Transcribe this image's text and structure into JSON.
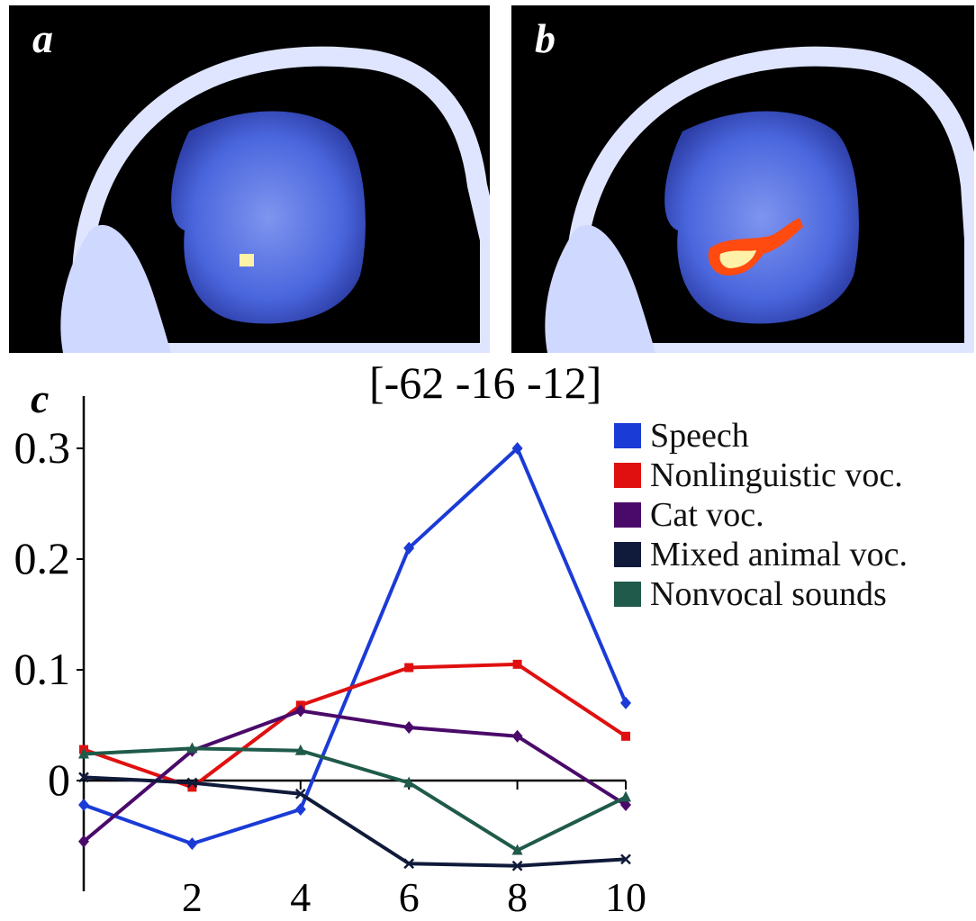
{
  "panels": {
    "a": {
      "label": "a"
    },
    "b": {
      "label": "b"
    },
    "c": {
      "label": "c"
    }
  },
  "colors": {
    "scan_blue": "#3b5bdc",
    "skull": "#e8ecff",
    "activation_core": "#fff2a8",
    "activation_edge": "#ff4a10"
  },
  "chart_data": {
    "type": "line",
    "title": "[-62 -16 -12]",
    "xlabel": "",
    "ylabel": "",
    "x": [
      0,
      2,
      4,
      6,
      8,
      10
    ],
    "x_ticks": [
      "2",
      "4",
      "6",
      "8",
      "10"
    ],
    "x_tick_values": [
      2,
      4,
      6,
      8,
      10
    ],
    "y_ticks": [
      "0",
      "0.1",
      "0.2",
      "0.3"
    ],
    "y_tick_values": [
      0,
      0.1,
      0.2,
      0.3
    ],
    "xlim": [
      0,
      10
    ],
    "ylim": [
      -0.1,
      0.34
    ],
    "grid": false,
    "legend_position": "top-right",
    "series": [
      {
        "name": "Speech",
        "color": "#1a3bd6",
        "values": [
          -0.022,
          -0.057,
          -0.026,
          0.21,
          0.3,
          0.07
        ]
      },
      {
        "name": "Nonlinguistic voc.",
        "color": "#e01010",
        "values": [
          0.028,
          -0.006,
          0.068,
          0.102,
          0.105,
          0.04
        ]
      },
      {
        "name": "Cat voc.",
        "color": "#4a0a6a",
        "values": [
          -0.055,
          0.027,
          0.063,
          0.048,
          0.04,
          -0.022
        ]
      },
      {
        "name": "Mixed animal voc.",
        "color": "#101a3a",
        "values": [
          0.003,
          -0.002,
          -0.012,
          -0.075,
          -0.077,
          -0.071
        ]
      },
      {
        "name": "Nonvocal sounds",
        "color": "#1f5a4a",
        "values": [
          0.024,
          0.029,
          0.027,
          -0.002,
          -0.063,
          -0.015
        ]
      }
    ]
  }
}
